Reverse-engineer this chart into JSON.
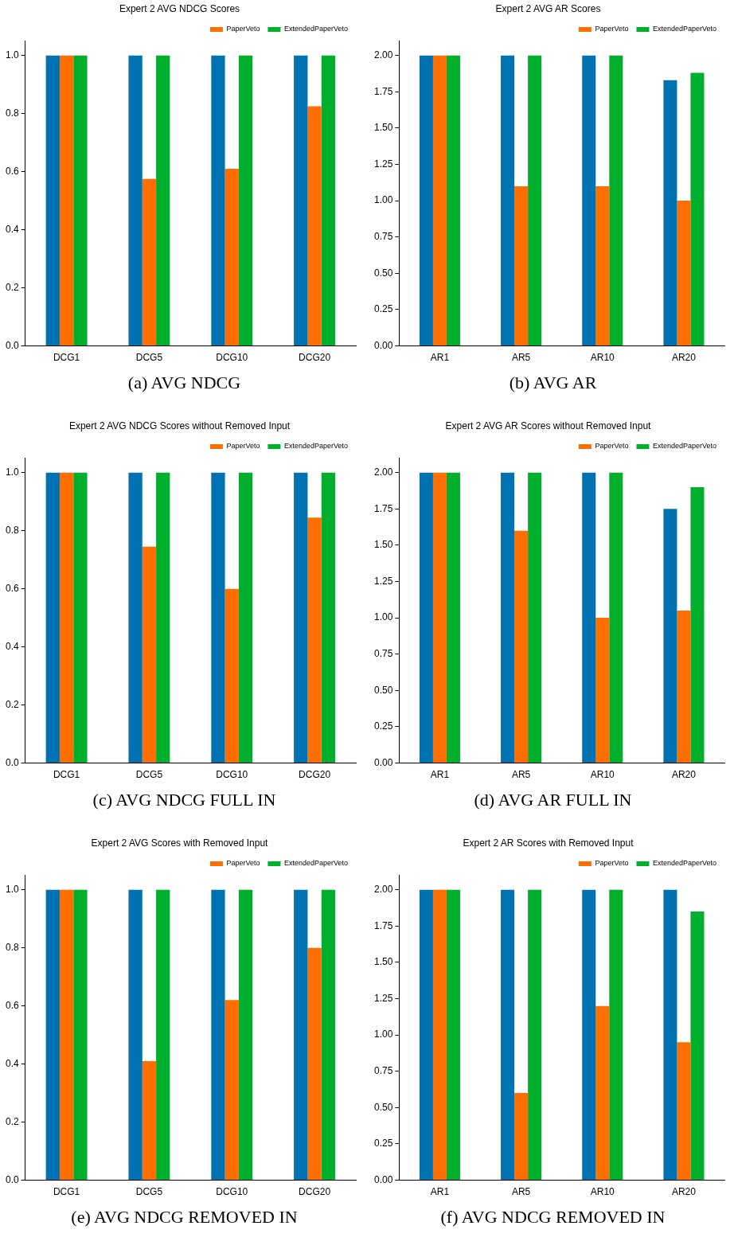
{
  "chart_data": [
    {
      "type": "bar",
      "title": "Expert 2 AVG NDCG Scores",
      "categories": [
        "DCG1",
        "DCG5",
        "DCG10",
        "DCG20"
      ],
      "series": [
        {
          "color": "#0072b2",
          "values": [
            1,
            1,
            1,
            1
          ]
        },
        {
          "name": "PaperVeto",
          "color": "#ff6e00",
          "values": [
            1,
            0.575,
            0.61,
            0.825
          ]
        },
        {
          "name": "ExtendedPaperVeto",
          "color": "#00b02d",
          "values": [
            1,
            1,
            1,
            1
          ]
        }
      ],
      "ylim": [
        0,
        1.05
      ],
      "yticks": [
        {
          "value": 0,
          "label": "0.0"
        },
        {
          "value": 0.2,
          "label": "0.2"
        },
        {
          "value": 0.4,
          "label": "0.4"
        },
        {
          "value": 0.6,
          "label": "0.6"
        },
        {
          "value": 0.8,
          "label": "0.8"
        },
        {
          "value": 1,
          "label": "1.0"
        }
      ],
      "legend": "top right",
      "grid": false,
      "annotations": [
        "(a) AVG NDCG"
      ]
    },
    {
      "type": "bar",
      "title": "Expert 2 AVG AR Scores",
      "categories": [
        "AR1",
        "AR5",
        "AR10",
        "AR20"
      ],
      "series": [
        {
          "color": "#0072b2",
          "values": [
            2,
            2,
            2,
            1.83
          ]
        },
        {
          "name": "PaperVeto",
          "color": "#ff6e00",
          "values": [
            2,
            1.1,
            1.1,
            1.0
          ]
        },
        {
          "name": "ExtendedPaperVeto",
          "color": "#00b02d",
          "values": [
            2,
            2,
            2,
            1.88
          ]
        }
      ],
      "ylim": [
        0,
        2.1
      ],
      "yticks": [
        {
          "value": 0,
          "label": "0.00"
        },
        {
          "value": 0.25,
          "label": "0.25"
        },
        {
          "value": 0.5,
          "label": "0.50"
        },
        {
          "value": 0.75,
          "label": "0.75"
        },
        {
          "value": 1,
          "label": "1.00"
        },
        {
          "value": 1.25,
          "label": "1.25"
        },
        {
          "value": 1.5,
          "label": "1.50"
        },
        {
          "value": 1.75,
          "label": "1.75"
        },
        {
          "value": 2,
          "label": "2.00"
        }
      ],
      "legend": "top right",
      "grid": false,
      "annotations": [
        "(b) AVG AR"
      ]
    },
    {
      "type": "bar",
      "title": "Expert 2 AVG NDCG Scores without Removed Input",
      "categories": [
        "DCG1",
        "DCG5",
        "DCG10",
        "DCG20"
      ],
      "series": [
        {
          "color": "#0072b2",
          "values": [
            1,
            1,
            1,
            1
          ]
        },
        {
          "name": "PaperVeto",
          "color": "#ff6e00",
          "values": [
            1,
            0.745,
            0.6,
            0.845
          ]
        },
        {
          "name": "ExtendedPaperVeto",
          "color": "#00b02d",
          "values": [
            1,
            1,
            1,
            1
          ]
        }
      ],
      "ylim": [
        0,
        1.05
      ],
      "yticks": [
        {
          "value": 0,
          "label": "0.0"
        },
        {
          "value": 0.2,
          "label": "0.2"
        },
        {
          "value": 0.4,
          "label": "0.4"
        },
        {
          "value": 0.6,
          "label": "0.6"
        },
        {
          "value": 0.8,
          "label": "0.8"
        },
        {
          "value": 1,
          "label": "1.0"
        }
      ],
      "legend": "top right",
      "grid": false,
      "annotations": [
        "(c) AVG NDCG FULL IN"
      ]
    },
    {
      "type": "bar",
      "title": "Expert 2 AVG AR Scores without Removed Input",
      "categories": [
        "AR1",
        "AR5",
        "AR10",
        "AR20"
      ],
      "series": [
        {
          "color": "#0072b2",
          "values": [
            2,
            2,
            2,
            1.75
          ]
        },
        {
          "name": "PaperVeto",
          "color": "#ff6e00",
          "values": [
            2,
            1.6,
            1.0,
            1.05
          ]
        },
        {
          "name": "ExtendedPaperVeto",
          "color": "#00b02d",
          "values": [
            2,
            2,
            2,
            1.9
          ]
        }
      ],
      "ylim": [
        0,
        2.1
      ],
      "yticks": [
        {
          "value": 0,
          "label": "0.00"
        },
        {
          "value": 0.25,
          "label": "0.25"
        },
        {
          "value": 0.5,
          "label": "0.50"
        },
        {
          "value": 0.75,
          "label": "0.75"
        },
        {
          "value": 1,
          "label": "1.00"
        },
        {
          "value": 1.25,
          "label": "1.25"
        },
        {
          "value": 1.5,
          "label": "1.50"
        },
        {
          "value": 1.75,
          "label": "1.75"
        },
        {
          "value": 2,
          "label": "2.00"
        }
      ],
      "legend": "top right",
      "grid": false,
      "annotations": [
        "(d) AVG AR FULL IN"
      ]
    },
    {
      "type": "bar",
      "title": "Expert 2 AVG Scores with Removed Input",
      "categories": [
        "DCG1",
        "DCG5",
        "DCG10",
        "DCG20"
      ],
      "series": [
        {
          "color": "#0072b2",
          "values": [
            1,
            1,
            1,
            1
          ]
        },
        {
          "name": "PaperVeto",
          "color": "#ff6e00",
          "values": [
            1,
            0.41,
            0.62,
            0.8
          ]
        },
        {
          "name": "ExtendedPaperVeto",
          "color": "#00b02d",
          "values": [
            1,
            1,
            1,
            1
          ]
        }
      ],
      "ylim": [
        0,
        1.05
      ],
      "yticks": [
        {
          "value": 0,
          "label": "0.0"
        },
        {
          "value": 0.2,
          "label": "0.2"
        },
        {
          "value": 0.4,
          "label": "0.4"
        },
        {
          "value": 0.6,
          "label": "0.6"
        },
        {
          "value": 0.8,
          "label": "0.8"
        },
        {
          "value": 1,
          "label": "1.0"
        }
      ],
      "legend": "top right",
      "grid": false,
      "annotations": [
        "(e) AVG NDCG REMOVED IN"
      ]
    },
    {
      "type": "bar",
      "title": "Expert 2 AR Scores with Removed Input",
      "categories": [
        "AR1",
        "AR5",
        "AR10",
        "AR20"
      ],
      "series": [
        {
          "color": "#0072b2",
          "values": [
            2,
            2,
            2,
            2
          ]
        },
        {
          "name": "PaperVeto",
          "color": "#ff6e00",
          "values": [
            2,
            0.6,
            1.2,
            0.95
          ]
        },
        {
          "name": "ExtendedPaperVeto",
          "color": "#00b02d",
          "values": [
            2,
            2,
            2,
            1.85
          ]
        }
      ],
      "ylim": [
        0,
        2.1
      ],
      "yticks": [
        {
          "value": 0,
          "label": "0.00"
        },
        {
          "value": 0.25,
          "label": "0.25"
        },
        {
          "value": 0.5,
          "label": "0.50"
        },
        {
          "value": 0.75,
          "label": "0.75"
        },
        {
          "value": 1,
          "label": "1.00"
        },
        {
          "value": 1.25,
          "label": "1.25"
        },
        {
          "value": 1.5,
          "label": "1.50"
        },
        {
          "value": 1.75,
          "label": "1.75"
        },
        {
          "value": 2,
          "label": "2.00"
        }
      ],
      "legend": "top right",
      "grid": false,
      "annotations": [
        "(f) AVG NDCG REMOVED IN"
      ]
    }
  ]
}
